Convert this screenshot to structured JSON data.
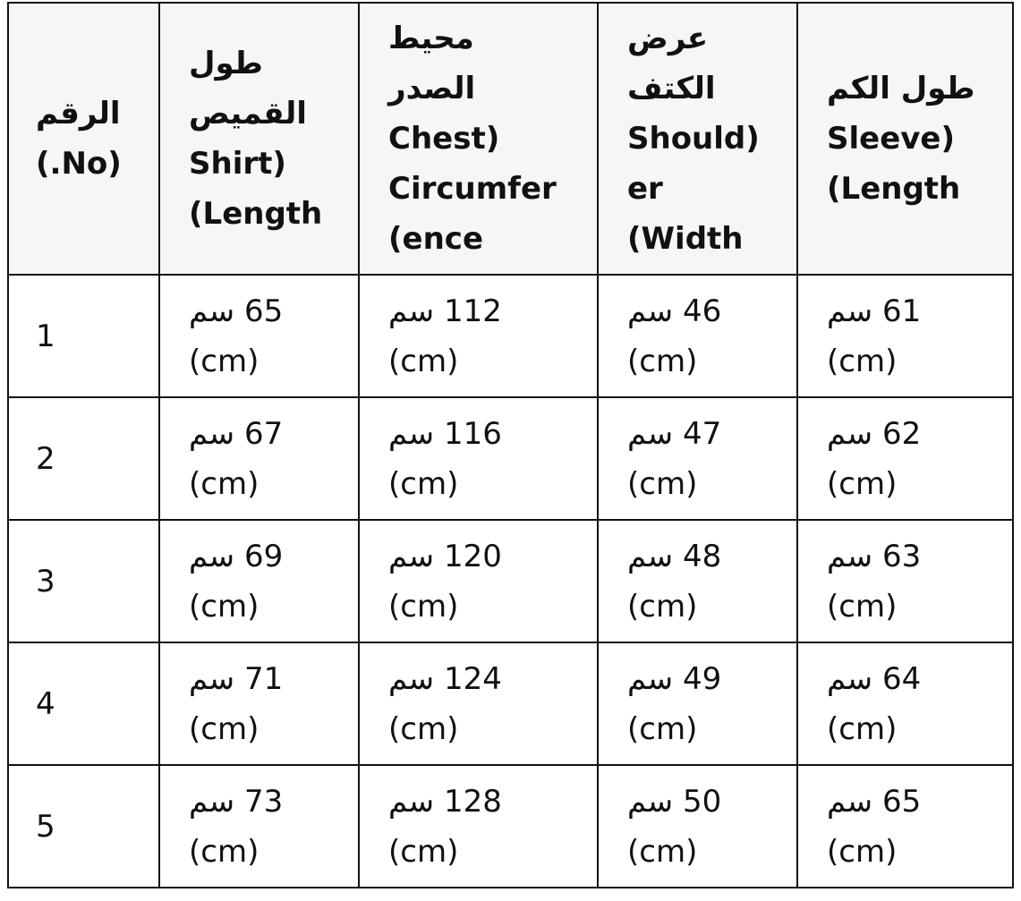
{
  "headers": [
    {
      "lines": [
        "الرقم",
        "(.No)"
      ]
    },
    {
      "lines": [
        "طول",
        "القميص",
        "Shirt)",
        "(Length"
      ]
    },
    {
      "lines": [
        "محيط",
        "الصدر",
        "Chest)",
        "Circumfer",
        "(ence"
      ]
    },
    {
      "lines": [
        "عرض",
        "الكتف",
        "Should)",
        "er",
        "(Width"
      ]
    },
    {
      "lines": [
        "طول الكم",
        "Sleeve)",
        "(Length"
      ]
    }
  ],
  "unit_line": "(cm)",
  "rows": [
    {
      "no": "1",
      "values": [
        "65 سم",
        "112 سم",
        "46 سم",
        "61 سم"
      ]
    },
    {
      "no": "2",
      "values": [
        "67 سم",
        "116 سم",
        "47 سم",
        "62 سم"
      ]
    },
    {
      "no": "3",
      "values": [
        "69 سم",
        "120 سم",
        "48 سم",
        "63 سم"
      ]
    },
    {
      "no": "4",
      "values": [
        "71 سم",
        "124 سم",
        "49 سم",
        "64 سم"
      ]
    },
    {
      "no": "5",
      "values": [
        "73 سم",
        "128 سم",
        "50 سم",
        "65 سم"
      ]
    }
  ]
}
